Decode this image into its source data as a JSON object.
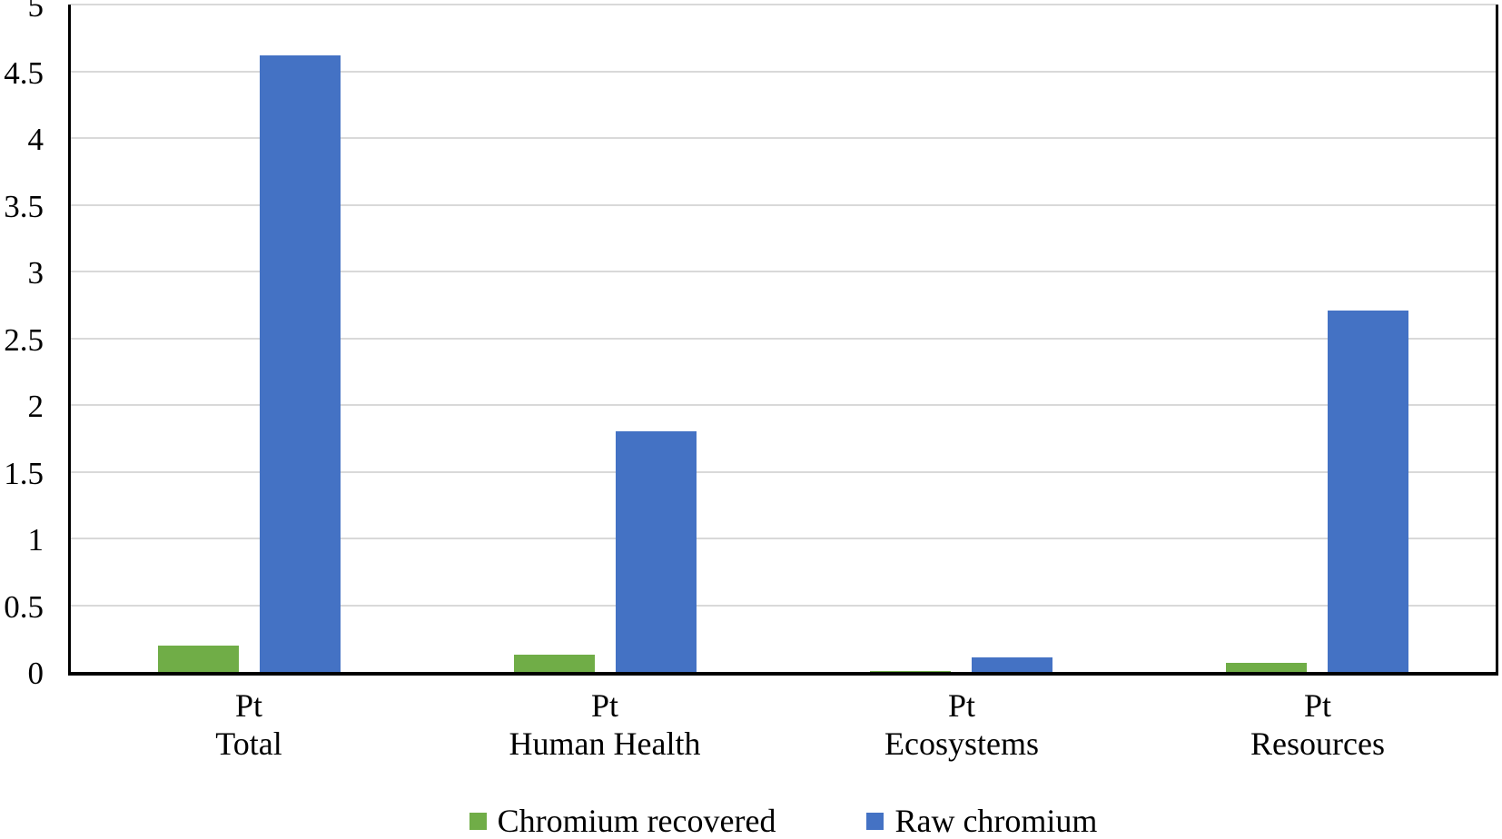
{
  "chart_data": {
    "type": "bar",
    "title": "",
    "xlabel": "",
    "ylabel": "",
    "ylim": [
      0,
      5
    ],
    "ytick_step": 0.5,
    "yticks": [
      "0",
      "0.5",
      "1",
      "1.5",
      "2",
      "2.5",
      "3",
      "3.5",
      "4",
      "4.5",
      "5"
    ],
    "grid": true,
    "legend_position": "bottom",
    "categories": [
      [
        "Pt",
        "Total"
      ],
      [
        "Pt",
        "Human Health"
      ],
      [
        "Pt",
        "Ecosystems"
      ],
      [
        "Pt",
        "Resources"
      ]
    ],
    "series": [
      {
        "name": "Chromium recovered",
        "color": "#70AD47",
        "values": [
          0.2,
          0.13,
          0.005,
          0.07
        ]
      },
      {
        "name": "Raw chromium",
        "color": "#4472C4",
        "values": [
          4.62,
          1.8,
          0.11,
          2.71
        ]
      }
    ],
    "colors": {
      "gridline": "#D9D9D9",
      "axis": "#000000",
      "text": "#000000",
      "background": "#FFFFFF"
    }
  }
}
